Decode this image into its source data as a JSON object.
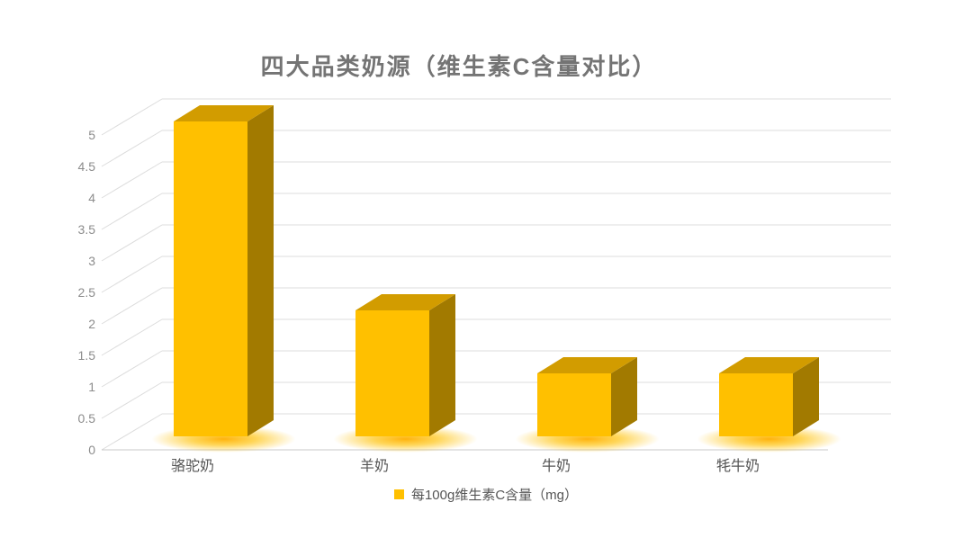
{
  "title": "四大品类奶源（维生素C含量对比）",
  "legend": {
    "label": "每100g维生素C含量（mg）",
    "swatch_color": "#FFC000"
  },
  "colors": {
    "bar_front": "#FFC000",
    "bar_top": "#D29C00",
    "bar_side": "#A27A00",
    "glow": "#FFB000",
    "gridline": "#DCDCDC",
    "floor_line": "#C9C9C9",
    "tick_label": "#8C8C8C",
    "category_label": "#555555",
    "title_color": "#747474",
    "background": "#FFFFFF"
  },
  "chart_data": {
    "type": "bar",
    "variant": "3d-column",
    "title": "四大品类奶源（维生素C含量对比）",
    "categories": [
      "骆驼奶",
      "羊奶",
      "牛奶",
      "牦牛奶"
    ],
    "series": [
      {
        "name": "每100g维生素C含量（mg）",
        "values": [
          5,
          2,
          1,
          1
        ]
      }
    ],
    "xlabel": "",
    "ylabel": "",
    "ylim": [
      0,
      5
    ],
    "yticks": [
      0,
      0.5,
      1,
      1.5,
      2,
      2.5,
      3,
      3.5,
      4,
      4.5,
      5
    ],
    "grid": true,
    "legend_position": "bottom"
  }
}
